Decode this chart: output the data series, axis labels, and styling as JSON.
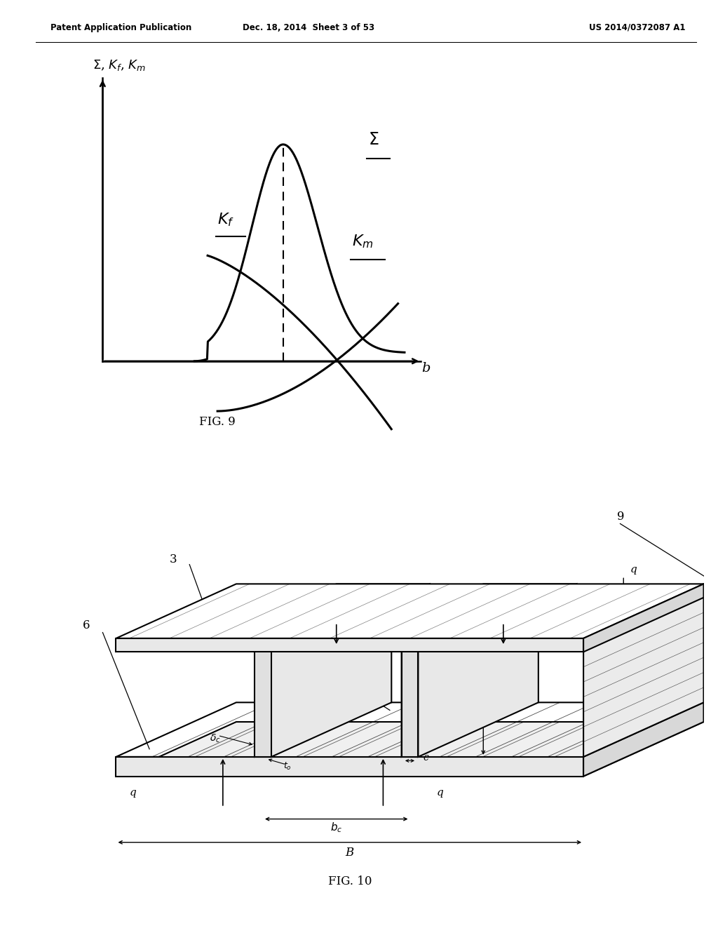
{
  "background_color": "#ffffff",
  "header_left": "Patent Application Publication",
  "header_center": "Dec. 18, 2014  Sheet 3 of 53",
  "header_right": "US 2014/0372087 A1",
  "fig9_label": "FIG. 9",
  "fig10_label": "FIG. 10"
}
